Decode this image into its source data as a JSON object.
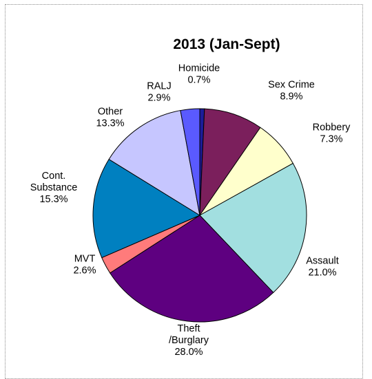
{
  "chart_data": {
    "type": "pie",
    "title": "2013 (Jan-Sept)",
    "slices": [
      {
        "label": [
          "Homicide"
        ],
        "value": 0.7,
        "value_label": "0.7%",
        "color": "#1c1c99"
      },
      {
        "label": [
          "Sex Crime"
        ],
        "value": 8.9,
        "value_label": "8.9%",
        "color": "#7b1f5c"
      },
      {
        "label": [
          "Robbery"
        ],
        "value": 7.3,
        "value_label": "7.3%",
        "color": "#ffffcc"
      },
      {
        "label": [
          "Assault"
        ],
        "value": 21.0,
        "value_label": "21.0%",
        "color": "#a2dfe0"
      },
      {
        "label": [
          "Theft",
          "/Burglary"
        ],
        "value": 28.0,
        "value_label": "28.0%",
        "color": "#5e0080"
      },
      {
        "label": [
          "MVT"
        ],
        "value": 2.6,
        "value_label": "2.6%",
        "color": "#ff7b7b"
      },
      {
        "label": [
          "Cont.",
          "Substance"
        ],
        "value": 15.3,
        "value_label": "15.3%",
        "color": "#0080c0"
      },
      {
        "label": [
          "Other"
        ],
        "value": 13.3,
        "value_label": "13.3%",
        "color": "#c6c6ff"
      },
      {
        "label": [
          "RALJ"
        ],
        "value": 2.9,
        "value_label": "2.9%",
        "color": "#5a5aff"
      }
    ],
    "start_angle": "12 o'clock",
    "direction": "clockwise",
    "slice_outline_color": "#000000"
  }
}
